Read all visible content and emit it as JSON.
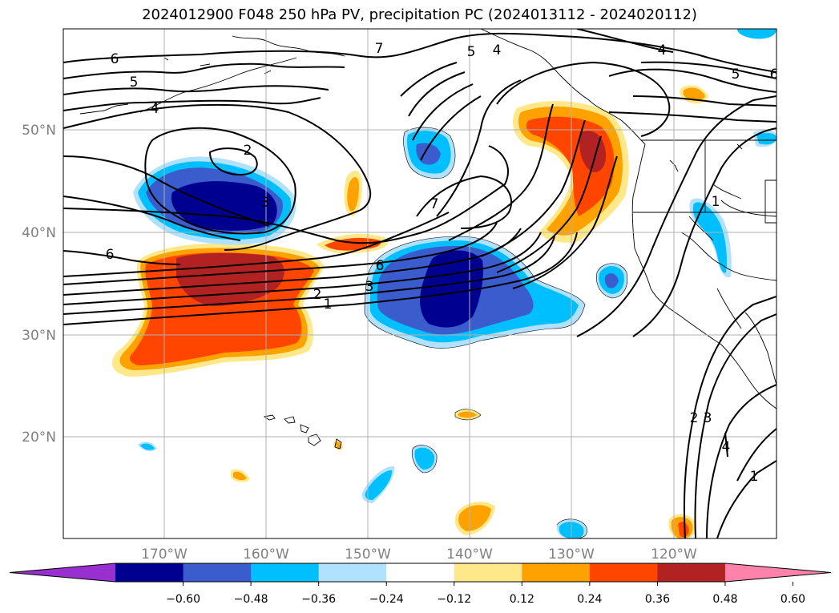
{
  "title": "2024012900 F048 250 hPa PV, precipitation PC (2024013112 - 2024020112)",
  "lat_labels": [
    "50°N",
    "40°N",
    "30°N",
    "20°N"
  ],
  "lon_labels": [
    "170°W",
    "160°W",
    "150°W",
    "140°W",
    "130°W",
    "120°W"
  ],
  "colorbar": {
    "ticks": [
      "−0.60",
      "−0.48",
      "−0.36",
      "−0.24",
      "−0.12",
      "0.12",
      "0.24",
      "0.36",
      "0.48",
      "0.60"
    ],
    "colors": [
      "#9a2fd0",
      "#000090",
      "#3a5ccc",
      "#00bfff",
      "#b0e2ff",
      "#ffffff",
      "#ffe88a",
      "#ffa200",
      "#ff4500",
      "#b22222",
      "#ff82ab"
    ]
  },
  "contour_labels": [
    "6",
    "5",
    "4",
    "7",
    "5",
    "4",
    "4",
    "5",
    "6",
    "2",
    "3",
    "7",
    "6",
    "6",
    "2",
    "3",
    "1",
    "1",
    "2",
    "3",
    "4",
    "1"
  ]
}
